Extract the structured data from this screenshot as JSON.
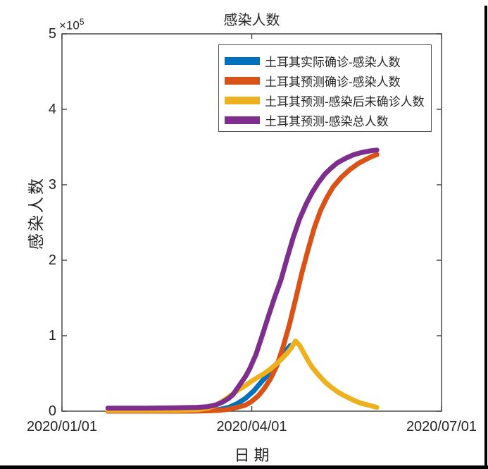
{
  "chart_data": {
    "type": "line",
    "title": "感染人数",
    "xlabel": "日期",
    "ylabel": "感染人数",
    "y_exponent": {
      "base": "×10",
      "exp": "5"
    },
    "x_unit": "days since 2020/01/01",
    "xlim": [
      0,
      182
    ],
    "ylim": [
      0,
      5
    ],
    "y_value_scale": 100000,
    "grid": false,
    "legend_position": "upper-center-inside",
    "x_ticks": [
      {
        "day": 0,
        "label": "2020/01/01"
      },
      {
        "day": 91,
        "label": "2020/04/01"
      },
      {
        "day": 182,
        "label": "2020/07/01"
      }
    ],
    "y_ticks": [
      0,
      1,
      2,
      3,
      4,
      5
    ],
    "series": [
      {
        "id": "actual-confirmed",
        "name": "土耳其实际确诊-感染人数",
        "color": "#0072BD",
        "points": [
          [
            22,
            0
          ],
          [
            55,
            0
          ],
          [
            65,
            0.002
          ],
          [
            70,
            0.006
          ],
          [
            75,
            0.02
          ],
          [
            80,
            0.05
          ],
          [
            84,
            0.1
          ],
          [
            88,
            0.17
          ],
          [
            92,
            0.27
          ],
          [
            96,
            0.4
          ],
          [
            100,
            0.52
          ],
          [
            103,
            0.63
          ],
          [
            106,
            0.75
          ],
          [
            108,
            0.82
          ],
          [
            109.5,
            0.87
          ]
        ]
      },
      {
        "id": "predicted-confirmed",
        "name": "土耳其预测确诊-感染人数",
        "color": "#D95319",
        "points": [
          [
            22,
            0
          ],
          [
            55,
            0
          ],
          [
            70,
            0.005
          ],
          [
            76,
            0.012
          ],
          [
            80,
            0.025
          ],
          [
            84,
            0.05
          ],
          [
            88,
            0.08
          ],
          [
            91,
            0.13
          ],
          [
            94,
            0.2
          ],
          [
            97,
            0.3
          ],
          [
            100,
            0.43
          ],
          [
            103,
            0.6
          ],
          [
            106,
            0.85
          ],
          [
            109,
            1.14
          ],
          [
            112,
            1.48
          ],
          [
            115,
            1.83
          ],
          [
            118,
            2.14
          ],
          [
            121,
            2.43
          ],
          [
            124,
            2.66
          ],
          [
            127,
            2.83
          ],
          [
            130,
            2.97
          ],
          [
            134,
            3.1
          ],
          [
            138,
            3.2
          ],
          [
            142,
            3.28
          ],
          [
            146,
            3.34
          ],
          [
            149,
            3.38
          ],
          [
            151,
            3.4
          ]
        ]
      },
      {
        "id": "predicted-unconfirmed",
        "name": "土耳其预测-感染后未确诊人数",
        "color": "#EDB120",
        "points": [
          [
            22,
            0.01
          ],
          [
            55,
            0.01
          ],
          [
            65,
            0.02
          ],
          [
            70,
            0.04
          ],
          [
            74,
            0.08
          ],
          [
            78,
            0.15
          ],
          [
            82,
            0.23
          ],
          [
            85,
            0.29
          ],
          [
            88,
            0.34
          ],
          [
            91,
            0.4
          ],
          [
            94,
            0.45
          ],
          [
            97,
            0.5
          ],
          [
            100,
            0.56
          ],
          [
            103,
            0.63
          ],
          [
            106,
            0.71
          ],
          [
            108,
            0.77
          ],
          [
            110,
            0.84
          ],
          [
            112,
            0.93
          ],
          [
            114,
            0.87
          ],
          [
            116,
            0.77
          ],
          [
            118,
            0.67
          ],
          [
            120,
            0.58
          ],
          [
            123,
            0.48
          ],
          [
            126,
            0.39
          ],
          [
            129,
            0.32
          ],
          [
            132,
            0.26
          ],
          [
            135,
            0.21
          ],
          [
            138,
            0.17
          ],
          [
            141,
            0.13
          ],
          [
            144,
            0.1
          ],
          [
            147,
            0.08
          ],
          [
            151,
            0.05
          ]
        ]
      },
      {
        "id": "predicted-total",
        "name": "土耳其预测-感染总人数",
        "color": "#7E2F8E",
        "points": [
          [
            22,
            0.04
          ],
          [
            40,
            0.04
          ],
          [
            55,
            0.045
          ],
          [
            65,
            0.05
          ],
          [
            70,
            0.06
          ],
          [
            74,
            0.085
          ],
          [
            77,
            0.12
          ],
          [
            80,
            0.17
          ],
          [
            82,
            0.22
          ],
          [
            84,
            0.3
          ],
          [
            86,
            0.38
          ],
          [
            88,
            0.46
          ],
          [
            90,
            0.56
          ],
          [
            93,
            0.75
          ],
          [
            96,
            1.0
          ],
          [
            99,
            1.26
          ],
          [
            102,
            1.51
          ],
          [
            105,
            1.74
          ],
          [
            108,
            2.03
          ],
          [
            111,
            2.31
          ],
          [
            114,
            2.55
          ],
          [
            117,
            2.74
          ],
          [
            120,
            2.9
          ],
          [
            123,
            3.03
          ],
          [
            126,
            3.14
          ],
          [
            129,
            3.22
          ],
          [
            132,
            3.29
          ],
          [
            136,
            3.35
          ],
          [
            140,
            3.4
          ],
          [
            144,
            3.43
          ],
          [
            148,
            3.45
          ],
          [
            151,
            3.46
          ]
        ]
      }
    ]
  },
  "colors": {
    "axis": "#3d3d3d",
    "text": "#262626",
    "background": "#ffffff",
    "frame_border": "#000000"
  }
}
